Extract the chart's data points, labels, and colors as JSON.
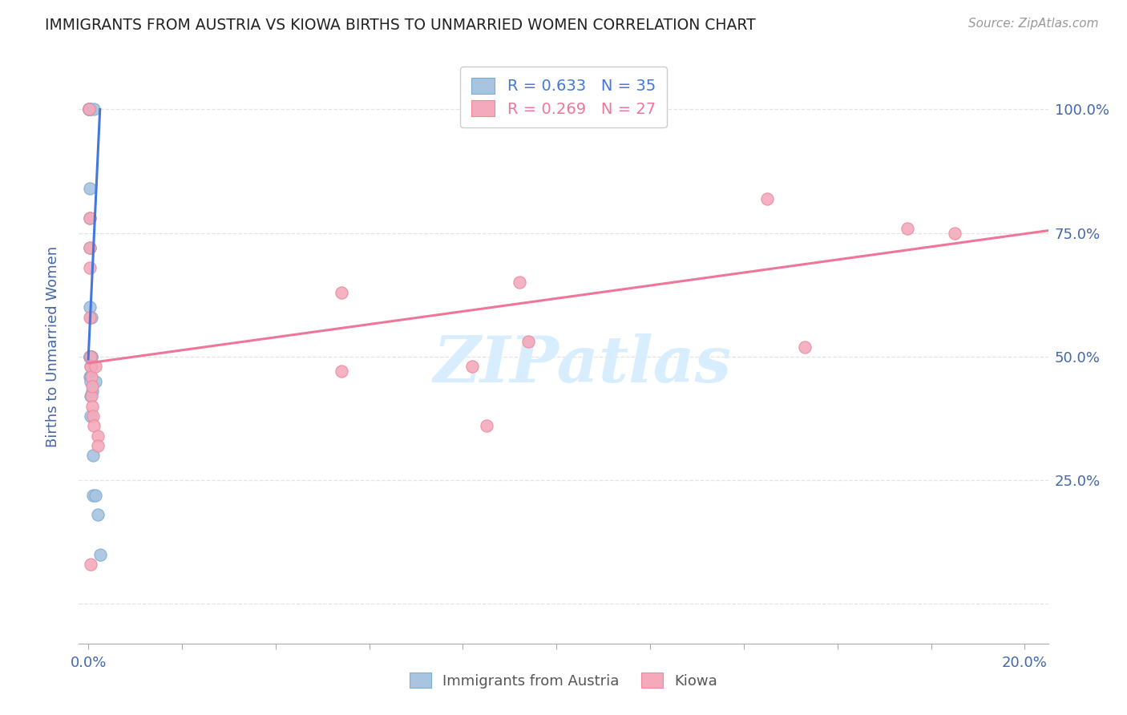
{
  "title": "IMMIGRANTS FROM AUSTRIA VS KIOWA BIRTHS TO UNMARRIED WOMEN CORRELATION CHART",
  "source": "Source: ZipAtlas.com",
  "ylabel_label": "Births to Unmarried Women",
  "watermark": "ZIPatlas",
  "xlim": [
    -0.002,
    0.205
  ],
  "ylim": [
    -0.08,
    1.12
  ],
  "blue_color": "#A8C4E0",
  "pink_color": "#F4AABC",
  "blue_edge_color": "#7BACD4",
  "pink_edge_color": "#EE8898",
  "blue_line_color": "#4477DD",
  "pink_line_color": "#EE7799",
  "axis_color": "#4466AA",
  "grid_color": "#DDDDDD",
  "blue_x": [
    0.0002,
    0.0002,
    0.0002,
    0.0002,
    0.0002,
    0.0002,
    0.0003,
    0.0003,
    0.0003,
    0.0003,
    0.0003,
    0.0003,
    0.0003,
    0.0003,
    0.0004,
    0.0004,
    0.0004,
    0.0005,
    0.0005,
    0.0005,
    0.0005,
    0.0005,
    0.0005,
    0.0006,
    0.0006,
    0.0007,
    0.0007,
    0.0008,
    0.001,
    0.001,
    0.0012,
    0.0015,
    0.0015,
    0.002,
    0.0025
  ],
  "blue_y": [
    1.0,
    1.0,
    1.0,
    1.0,
    1.0,
    1.0,
    1.0,
    1.0,
    1.0,
    0.84,
    0.72,
    0.6,
    0.5,
    0.5,
    0.78,
    0.5,
    0.46,
    0.5,
    0.48,
    0.46,
    0.45,
    0.42,
    0.38,
    0.5,
    0.48,
    0.58,
    0.5,
    0.43,
    0.3,
    0.22,
    1.0,
    0.45,
    0.22,
    0.18,
    0.1
  ],
  "pink_x": [
    0.0002,
    0.0003,
    0.0003,
    0.0004,
    0.0004,
    0.0005,
    0.0005,
    0.0005,
    0.0006,
    0.0007,
    0.0008,
    0.0008,
    0.001,
    0.0012,
    0.0015,
    0.002,
    0.054,
    0.054,
    0.082,
    0.085,
    0.092,
    0.094,
    0.145,
    0.153,
    0.175,
    0.185,
    0.002
  ],
  "pink_y": [
    1.0,
    0.78,
    0.72,
    0.68,
    0.58,
    0.5,
    0.48,
    0.08,
    0.46,
    0.42,
    0.44,
    0.4,
    0.38,
    0.36,
    0.48,
    0.34,
    0.63,
    0.47,
    0.48,
    0.36,
    0.65,
    0.53,
    0.82,
    0.52,
    0.76,
    0.75,
    0.32
  ],
  "blue_trend_x": [
    0.0,
    0.0025
  ],
  "blue_trend_y": [
    0.495,
    1.0
  ],
  "pink_trend_x": [
    0.0,
    0.205
  ],
  "pink_trend_y": [
    0.487,
    0.755
  ],
  "x_tick_positions": [
    0.0,
    0.02,
    0.04,
    0.06,
    0.08,
    0.1,
    0.12,
    0.14,
    0.16,
    0.18,
    0.2
  ],
  "x_tick_labels": [
    "0.0%",
    "",
    "",
    "",
    "",
    "",
    "",
    "",
    "",
    "",
    "20.0%"
  ],
  "y_tick_positions": [
    0.0,
    0.25,
    0.5,
    0.75,
    1.0
  ],
  "y_right_labels": [
    "",
    "25.0%",
    "50.0%",
    "75.0%",
    "100.0%"
  ]
}
